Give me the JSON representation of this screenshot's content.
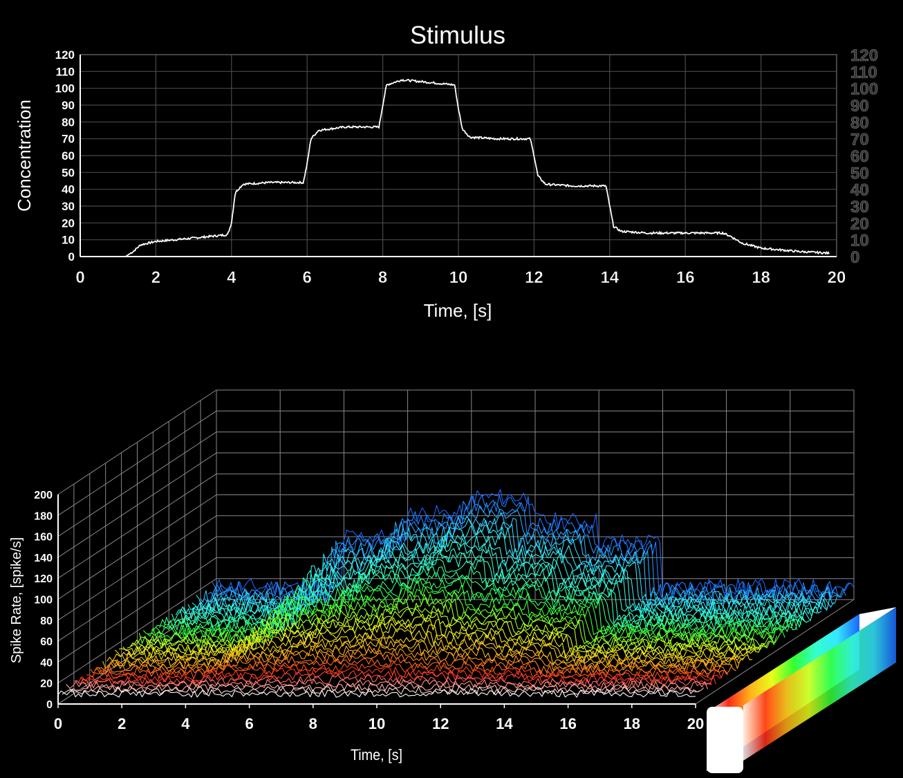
{
  "chart_data": [
    {
      "type": "line",
      "title": "Stimulus",
      "xlabel": "Time, [s]",
      "ylabel": "Concentration",
      "xlim": [
        0,
        20
      ],
      "ylim": [
        0,
        120
      ],
      "xticks": [
        "0",
        "2",
        "4",
        "6",
        "8",
        "10",
        "12",
        "14",
        "16",
        "18",
        "20"
      ],
      "yticks": [
        "0",
        "10",
        "20",
        "30",
        "40",
        "50",
        "60",
        "70",
        "80",
        "90",
        "100",
        "110",
        "120"
      ],
      "right_yticks": [
        "0",
        "10",
        "20",
        "30",
        "40",
        "50",
        "60",
        "70",
        "80",
        "90",
        "100",
        "110",
        "120"
      ],
      "grid": true,
      "line_color": "#ffffff",
      "series": [
        {
          "x": [
            0,
            1.2,
            1.4,
            1.6,
            2.0,
            3.0,
            3.9,
            4.0,
            4.1,
            4.3,
            5.0,
            5.9,
            6.0,
            6.1,
            6.3,
            7.0,
            7.9,
            8.0,
            8.1,
            8.5,
            9.0,
            9.9,
            10.0,
            10.1,
            10.3,
            11.0,
            11.9,
            12.0,
            12.1,
            12.3,
            13.0,
            13.9,
            14.0,
            14.1,
            14.3,
            15.0,
            16.0,
            17.0,
            17.2,
            17.5,
            18.0,
            19.0,
            19.8
          ],
          "y": [
            0,
            0,
            3,
            7,
            9,
            11,
            13,
            20,
            38,
            43,
            44,
            44,
            55,
            70,
            75,
            77,
            77,
            90,
            102,
            105,
            104,
            102,
            88,
            76,
            71,
            70,
            70,
            60,
            48,
            43,
            42,
            42,
            30,
            18,
            15,
            14,
            14,
            14,
            12,
            8,
            5,
            3,
            2
          ]
        }
      ]
    },
    {
      "type": "line",
      "subtype": "3d-waterfall",
      "xlabel": "Time, [s]",
      "ylabel": "Spike Rate, [spike/s]",
      "xlim": [
        0,
        20
      ],
      "ylim": [
        0,
        200
      ],
      "xticks": [
        "0",
        "2",
        "4",
        "6",
        "8",
        "10",
        "12",
        "14",
        "16",
        "18",
        "20"
      ],
      "yticks": [
        "0",
        "20",
        "40",
        "60",
        "80",
        "100",
        "120",
        "140",
        "160",
        "180",
        "200"
      ],
      "colorbar_label": "–",
      "colormap": [
        "#ffffff",
        "#ff2a1a",
        "#ffb31a",
        "#e6ff1a",
        "#33ff33",
        "#33ffcc",
        "#33e6ff",
        "#1a66ff"
      ],
      "n_traces": 40,
      "noise_level": 12,
      "stimulus_response_steps": [
        {
          "start": 0,
          "end": 4,
          "rate": 12
        },
        {
          "start": 4,
          "end": 6,
          "rate": 60
        },
        {
          "start": 6,
          "end": 8,
          "rate": 82
        },
        {
          "start": 8,
          "end": 10,
          "rate": 98
        },
        {
          "start": 10,
          "end": 12,
          "rate": 75
        },
        {
          "start": 12,
          "end": 14,
          "rate": 55
        },
        {
          "start": 14,
          "end": 20,
          "rate": 12
        }
      ]
    }
  ]
}
